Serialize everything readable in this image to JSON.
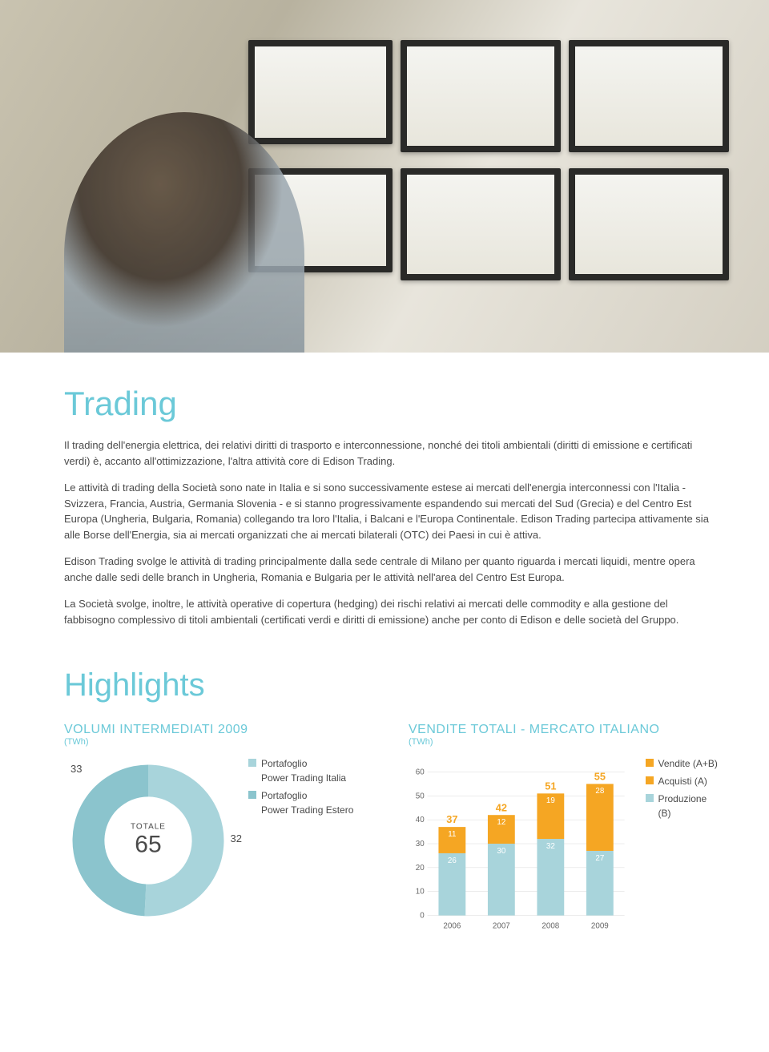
{
  "colors": {
    "accent": "#6bc9d8",
    "title": "#6bc9d8",
    "text": "#4a4a4a",
    "orange": "#f5a623",
    "teal": "#a8d4db",
    "teal_dark": "#8bc4cd",
    "grid": "#d8d8d8"
  },
  "title": "Trading",
  "paragraphs": [
    "Il trading dell'energia elettrica, dei relativi diritti di trasporto e interconnessione, nonché dei titoli ambientali (diritti di emissione e certificati verdi) è, accanto all'ottimizzazione, l'altra attività core di Edison Trading.",
    "Le attività di trading della Società sono nate in Italia e si sono successivamente estese ai mercati dell'energia interconnessi con l'Italia - Svizzera, Francia, Austria, Germania Slovenia - e si stanno progressivamente espandendo sui mercati del Sud (Grecia) e del Centro Est Europa (Ungheria, Bulgaria, Romania) collegando tra loro l'Italia, i Balcani e l'Europa Continentale. Edison Trading partecipa attivamente sia alle Borse dell'Energia, sia ai mercati organizzati che ai mercati bilaterali (OTC) dei Paesi in cui è attiva.",
    "Edison Trading svolge le attività di trading principalmente dalla sede centrale di Milano per quanto riguarda i mercati liquidi, mentre opera anche dalle sedi delle branch in Ungheria, Romania e Bulgaria per le attività nell'area del Centro Est Europa.",
    "La Società svolge, inoltre, le attività operative di copertura (hedging) dei rischi relativi ai mercati delle commodity e alla gestione del fabbisogno complessivo di titoli ambientali (certificati verdi e diritti di emissione) anche per conto di Edison e delle società del Gruppo."
  ],
  "highlights_title": "Highlights",
  "donut": {
    "heading": "VOLUMI INTERMEDIATI 2009",
    "unit": "(TWh)",
    "total_label": "TOTALE",
    "total_value": "65",
    "slices": [
      {
        "label": "33",
        "value": 33,
        "color": "#a8d4db"
      },
      {
        "label": "32",
        "value": 32,
        "color": "#8bc4cd"
      }
    ],
    "legend": [
      {
        "color": "#a8d4db",
        "lines": [
          "Portafoglio",
          "Power Trading Italia"
        ]
      },
      {
        "color": "#8bc4cd",
        "lines": [
          "Portafoglio",
          "Power Trading Estero"
        ]
      }
    ]
  },
  "bar": {
    "heading": "VENDITE TOTALI - MERCATO ITALIANO",
    "unit": "(TWh)",
    "ylim": [
      0,
      60
    ],
    "ytick_step": 10,
    "grid_color": "#d8d8d8",
    "categories": [
      "2006",
      "2007",
      "2008",
      "2009"
    ],
    "series": {
      "acquisti_color": "#f5a623",
      "produzione_color": "#a8d4db"
    },
    "stacks": [
      {
        "total": 37,
        "acquisti": 11,
        "produzione": 26,
        "total_color": "#f5a623"
      },
      {
        "total": 42,
        "acquisti": 12,
        "produzione": 30,
        "total_color": "#f5a623"
      },
      {
        "total": 51,
        "acquisti": 19,
        "produzione": 32,
        "total_color": "#f5a623"
      },
      {
        "total": 55,
        "acquisti": 28,
        "produzione": 27,
        "total_color": "#f5a623"
      }
    ],
    "legend": [
      {
        "color": "#f5a623",
        "label": "Vendite (A+B)"
      },
      {
        "color": "#f5a623",
        "label": "Acquisti (A)"
      },
      {
        "color": "#a8d4db",
        "label": "Produzione (B)"
      }
    ]
  }
}
